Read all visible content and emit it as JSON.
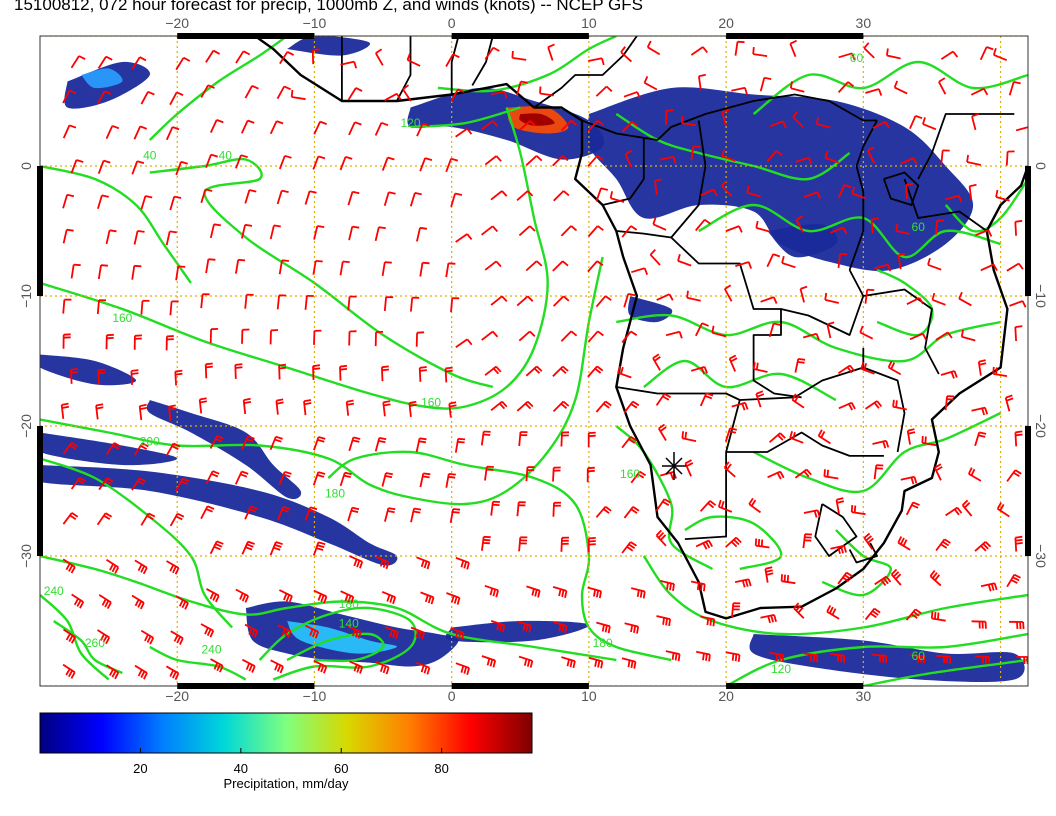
{
  "title": "15100812, 072 hour forecast for precip, 1000mb Z, and winds (knots) -- NCEP GFS",
  "map": {
    "lon_ticks": [
      {
        "lon": -20,
        "label": "−20"
      },
      {
        "lon": -10,
        "label": "−10"
      },
      {
        "lon": 0,
        "label": "0"
      },
      {
        "lon": 10,
        "label": "10"
      },
      {
        "lon": 20,
        "label": "20"
      },
      {
        "lon": 30,
        "label": "30"
      }
    ],
    "lat_ticks": [
      {
        "lat": 0,
        "label": "0"
      },
      {
        "lat": -10,
        "label": "−10"
      },
      {
        "lat": -20,
        "label": "−20"
      },
      {
        "lat": -30,
        "label": "−30"
      }
    ],
    "lon_range": [
      -30,
      42
    ],
    "lat_range": [
      -40,
      10
    ],
    "grid": true,
    "contour_labels": [
      {
        "text": "120",
        "lon": -3,
        "lat": 3
      },
      {
        "text": "160",
        "lon": -24,
        "lat": -12
      },
      {
        "text": "160",
        "lon": -1.5,
        "lat": -18.5
      },
      {
        "text": "180",
        "lon": -8.5,
        "lat": -25.5
      },
      {
        "text": "200",
        "lon": -22,
        "lat": -21.5
      },
      {
        "text": "180",
        "lon": -7.5,
        "lat": -34
      },
      {
        "text": "140",
        "lon": -7.5,
        "lat": -35.5
      },
      {
        "text": "180",
        "lon": 11,
        "lat": -37
      },
      {
        "text": "120",
        "lon": 24,
        "lat": -39
      },
      {
        "text": "60",
        "lon": 34,
        "lat": -38
      },
      {
        "text": "60",
        "lon": 29.5,
        "lat": 8
      },
      {
        "text": "60",
        "lon": 34,
        "lat": -5
      },
      {
        "text": "40",
        "lon": -16.5,
        "lat": 0.5
      },
      {
        "text": "40",
        "lon": -22,
        "lat": 0.5
      },
      {
        "text": "240",
        "lon": -29,
        "lat": -33
      },
      {
        "text": "260",
        "lon": -26,
        "lat": -37
      },
      {
        "text": "240",
        "lon": -17.5,
        "lat": -37.5
      },
      {
        "text": "160",
        "lon": 13,
        "lat": -24
      }
    ]
  },
  "colorbar": {
    "label": "Precipitation, mm/day",
    "min": 0,
    "max": 98,
    "ticks": [
      20,
      40,
      60,
      80
    ],
    "colors": [
      "#00007f",
      "#0000ff",
      "#007fff",
      "#00d8d8",
      "#7fff7f",
      "#d8d800",
      "#ff7f00",
      "#ff0000",
      "#7f0000"
    ]
  },
  "colors": {
    "wind_barbs": "#ff0000",
    "contours": "#22dd22",
    "coastlines": "#000000",
    "grid": "#e0b000",
    "precip_low": "#1a2a9a"
  }
}
